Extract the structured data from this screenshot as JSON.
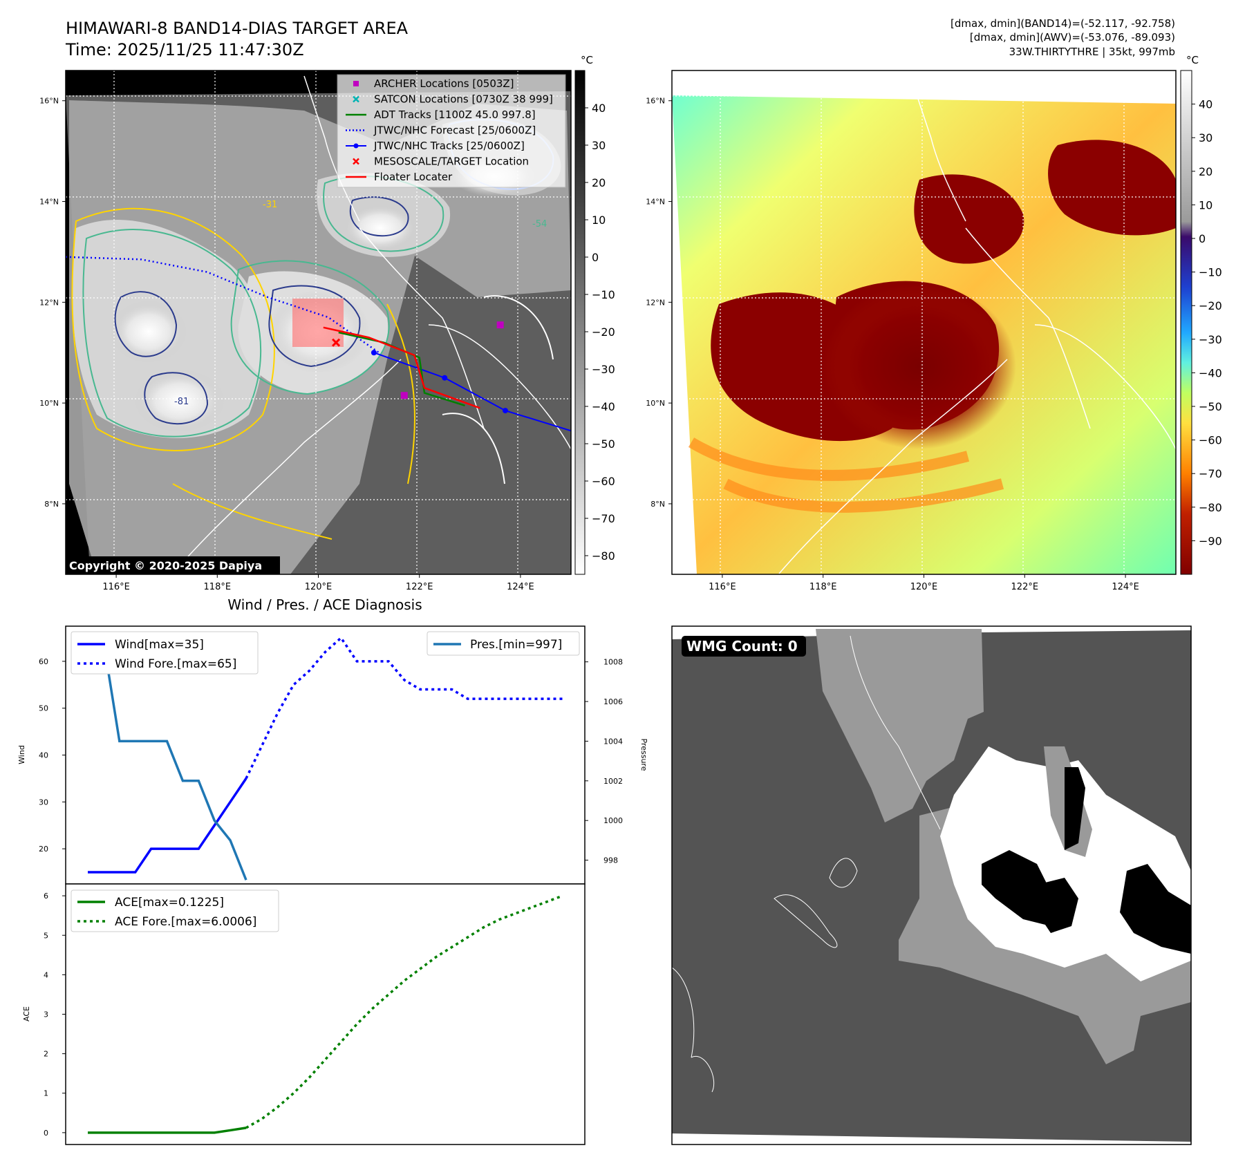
{
  "header": {
    "title_line1": "HIMAWARI-8 BAND14-DIAS TARGET AREA",
    "title_line2": "Time: 2025/11/25 11:47:30Z",
    "info_line1": "[dmax, dmin](BAND14)=(-52.117, -92.758)",
    "info_line2": "[dmax, dmin](AWV)=(-53.076, -89.093)",
    "info_line3": "33W.THIRTYTHRE | 35kt, 997mb"
  },
  "map_axes": {
    "lon_labels": [
      "116°E",
      "118°E",
      "120°E",
      "122°E",
      "124°E"
    ],
    "lat_labels": [
      "16°N",
      "14°N",
      "12°N",
      "10°N",
      "8°N"
    ],
    "lon_range": [
      115.0,
      125.0
    ],
    "lat_range": [
      6.6,
      16.6
    ]
  },
  "ir_panel": {
    "copyright": "Copyright © 2020-2025 Dapiya",
    "colorbar_unit": "°C",
    "colorbar_ticks": [
      "40",
      "30",
      "20",
      "10",
      "0",
      "−10",
      "−20",
      "−30",
      "−40",
      "−50",
      "−60",
      "−70",
      "−80"
    ],
    "colorbar_range": [
      -85,
      50
    ],
    "contour_labels": [
      "-31",
      "-54",
      "-81"
    ],
    "legend": [
      {
        "label": "ARCHER Locations [0503Z]",
        "color": "#c000c0",
        "symbol": "square"
      },
      {
        "label": "SATCON Locations [0730Z 38 999]",
        "color": "#00b3b3",
        "symbol": "x"
      },
      {
        "label": "ADT Tracks [1100Z 45.0 997.8]",
        "color": "#008000",
        "symbol": "line"
      },
      {
        "label": "JTWC/NHC Forecast [25/0600Z]",
        "color": "#0000ff",
        "symbol": "dotted"
      },
      {
        "label": "JTWC/NHC Tracks [25/0600Z]",
        "color": "#0000ff",
        "symbol": "line-dot"
      },
      {
        "label": "MESOSCALE/TARGET Location",
        "color": "#ff0000",
        "symbol": "x"
      },
      {
        "label": "Floater Locater",
        "color": "#ff0000",
        "symbol": "line"
      }
    ],
    "jtwc_forecast_track": [
      [
        115.0,
        12.9
      ],
      [
        116.5,
        12.85
      ],
      [
        117.8,
        12.6
      ],
      [
        119.0,
        12.1
      ],
      [
        120.2,
        11.7
      ],
      [
        121.2,
        11.0
      ]
    ],
    "jtwc_track": [
      [
        121.1,
        11.0
      ],
      [
        122.5,
        10.5
      ],
      [
        123.7,
        9.85
      ],
      [
        125.0,
        9.45
      ]
    ],
    "adt_track": [
      [
        120.4,
        11.4
      ],
      [
        121.3,
        11.2
      ],
      [
        122.0,
        10.9
      ],
      [
        122.1,
        10.2
      ],
      [
        122.9,
        9.95
      ]
    ],
    "floater_track": [
      [
        120.1,
        11.5
      ],
      [
        121.0,
        11.3
      ],
      [
        121.9,
        10.95
      ],
      [
        122.1,
        10.3
      ],
      [
        123.2,
        9.9
      ]
    ],
    "archer_points": [
      [
        123.6,
        11.55
      ],
      [
        121.7,
        10.15
      ]
    ],
    "target_point": [
      120.35,
      11.2
    ]
  },
  "awv_panel": {
    "colorbar_unit": "°C",
    "colorbar_ticks": [
      "40",
      "30",
      "20",
      "10",
      "0",
      "−10",
      "−20",
      "−30",
      "−40",
      "−50",
      "−60",
      "−70",
      "−80",
      "−90"
    ],
    "colorbar_range": [
      -100,
      50
    ]
  },
  "wind_chart": {
    "title": "Wind / Pres. / ACE Diagnosis",
    "ylabel": "Wind",
    "ylabel_right": "Pressure",
    "y_ticks": [
      "20",
      "30",
      "40",
      "50",
      "60"
    ],
    "y_right_ticks": [
      "998",
      "1000",
      "1002",
      "1004",
      "1006",
      "1008"
    ],
    "legend_wind": "Wind[max=35]",
    "legend_wind_fore": "Wind Fore.[max=65]",
    "legend_pres": "Pres.[min=997]"
  },
  "ace_chart": {
    "ylabel": "ACE",
    "y_ticks": [
      "0",
      "1",
      "2",
      "3",
      "4",
      "5",
      "6"
    ],
    "legend_ace": "ACE[max=0.1225]",
    "legend_ace_fore": "ACE Fore.[max=6.0006]"
  },
  "wmg_panel": {
    "label": "WMG Count: 0"
  },
  "chart_data": [
    {
      "type": "line",
      "title": "Wind / Pres. / ACE Diagnosis",
      "xlabel": "",
      "ylabel": "Wind",
      "ylim": [
        12.5,
        67.5
      ],
      "y2label": "Pressure",
      "y2lim": [
        996.8,
        1009.8
      ],
      "series": [
        {
          "name": "Wind[max=35]",
          "axis": "left",
          "color": "#0000ff",
          "style": "solid",
          "x": [
            0,
            2,
            3,
            4,
            5,
            6,
            7,
            8,
            9,
            10
          ],
          "y": [
            15,
            15,
            15,
            20,
            20,
            20,
            20,
            25,
            30,
            35
          ]
        },
        {
          "name": "Wind Fore.[max=65]",
          "axis": "left",
          "color": "#0000ff",
          "style": "dotted",
          "x": [
            10,
            11,
            12,
            13,
            14,
            15,
            16,
            17,
            18,
            19,
            20,
            21,
            22,
            23,
            24,
            25,
            26,
            27,
            28,
            29,
            30
          ],
          "y": [
            35,
            42,
            49,
            55,
            58,
            62,
            65,
            60,
            60,
            60,
            56,
            54,
            54,
            54,
            52,
            52,
            52,
            52,
            52,
            52,
            52
          ]
        },
        {
          "name": "Pres.[min=997]",
          "axis": "right",
          "color": "#1f77b4",
          "style": "solid",
          "x": [
            0,
            1,
            2,
            3,
            4,
            5,
            6,
            7,
            8,
            9,
            10
          ],
          "y": [
            1009,
            1009,
            1004,
            1004,
            1004,
            1004,
            1002,
            1002,
            1000,
            999,
            997
          ]
        }
      ]
    },
    {
      "type": "line",
      "xlabel": "",
      "ylabel": "ACE",
      "ylim": [
        -0.3,
        6.3
      ],
      "series": [
        {
          "name": "ACE[max=0.1225]",
          "color": "#008000",
          "style": "solid",
          "x": [
            0,
            2,
            4,
            6,
            8,
            9,
            10
          ],
          "y": [
            0,
            0,
            0,
            0,
            0,
            0.06,
            0.1225
          ]
        },
        {
          "name": "ACE Fore.[max=6.0006]",
          "color": "#008000",
          "style": "dotted",
          "x": [
            10,
            11,
            12,
            13,
            14,
            15,
            16,
            17,
            18,
            19,
            20,
            21,
            22,
            23,
            24,
            25,
            26,
            27,
            28,
            29,
            30
          ],
          "y": [
            0.1225,
            0.35,
            0.65,
            1.0,
            1.4,
            1.85,
            2.3,
            2.75,
            3.15,
            3.5,
            3.85,
            4.15,
            4.45,
            4.7,
            4.95,
            5.2,
            5.4,
            5.55,
            5.7,
            5.85,
            6.0006
          ]
        }
      ]
    }
  ]
}
